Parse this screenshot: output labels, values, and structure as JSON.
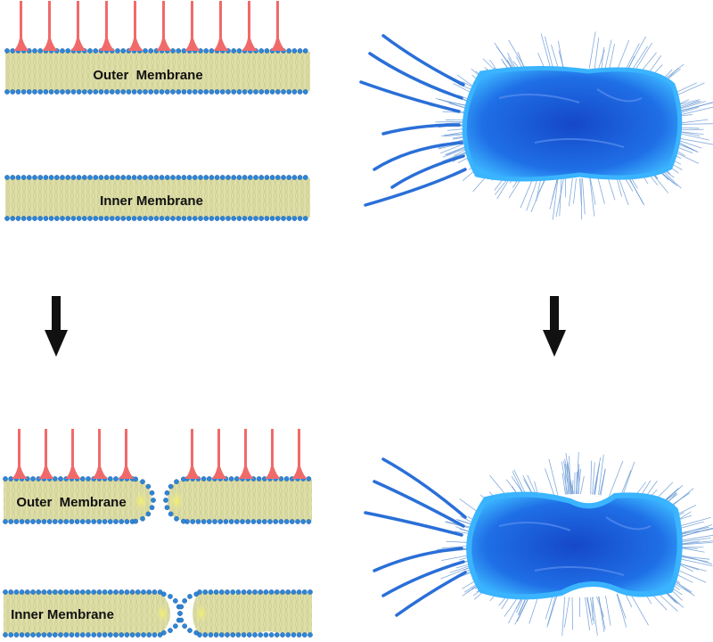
{
  "labels": {
    "outer_membrane": "Outer  Membrane",
    "inner_membrane": "Inner Membrane"
  },
  "colors": {
    "lipid_head": "#2f86d6",
    "lipid_head_edge": "#1f5fa8",
    "lipid_tail": "#dedfa8",
    "lipid_tail_line": "#c9c98a",
    "lps": "#f06a6a",
    "bacterium_body": "#1e63e0",
    "bacterium_edge": "#3ab4ff",
    "flagella": "#2a6fd8",
    "pili": "#5b8fd0",
    "arrow": "#111111",
    "background": "#ffffff"
  },
  "icons": {
    "arrow": "down-arrow-icon",
    "bacterium_intact": "rod-bacterium-intact",
    "bacterium_damaged": "rod-bacterium-damaged"
  }
}
